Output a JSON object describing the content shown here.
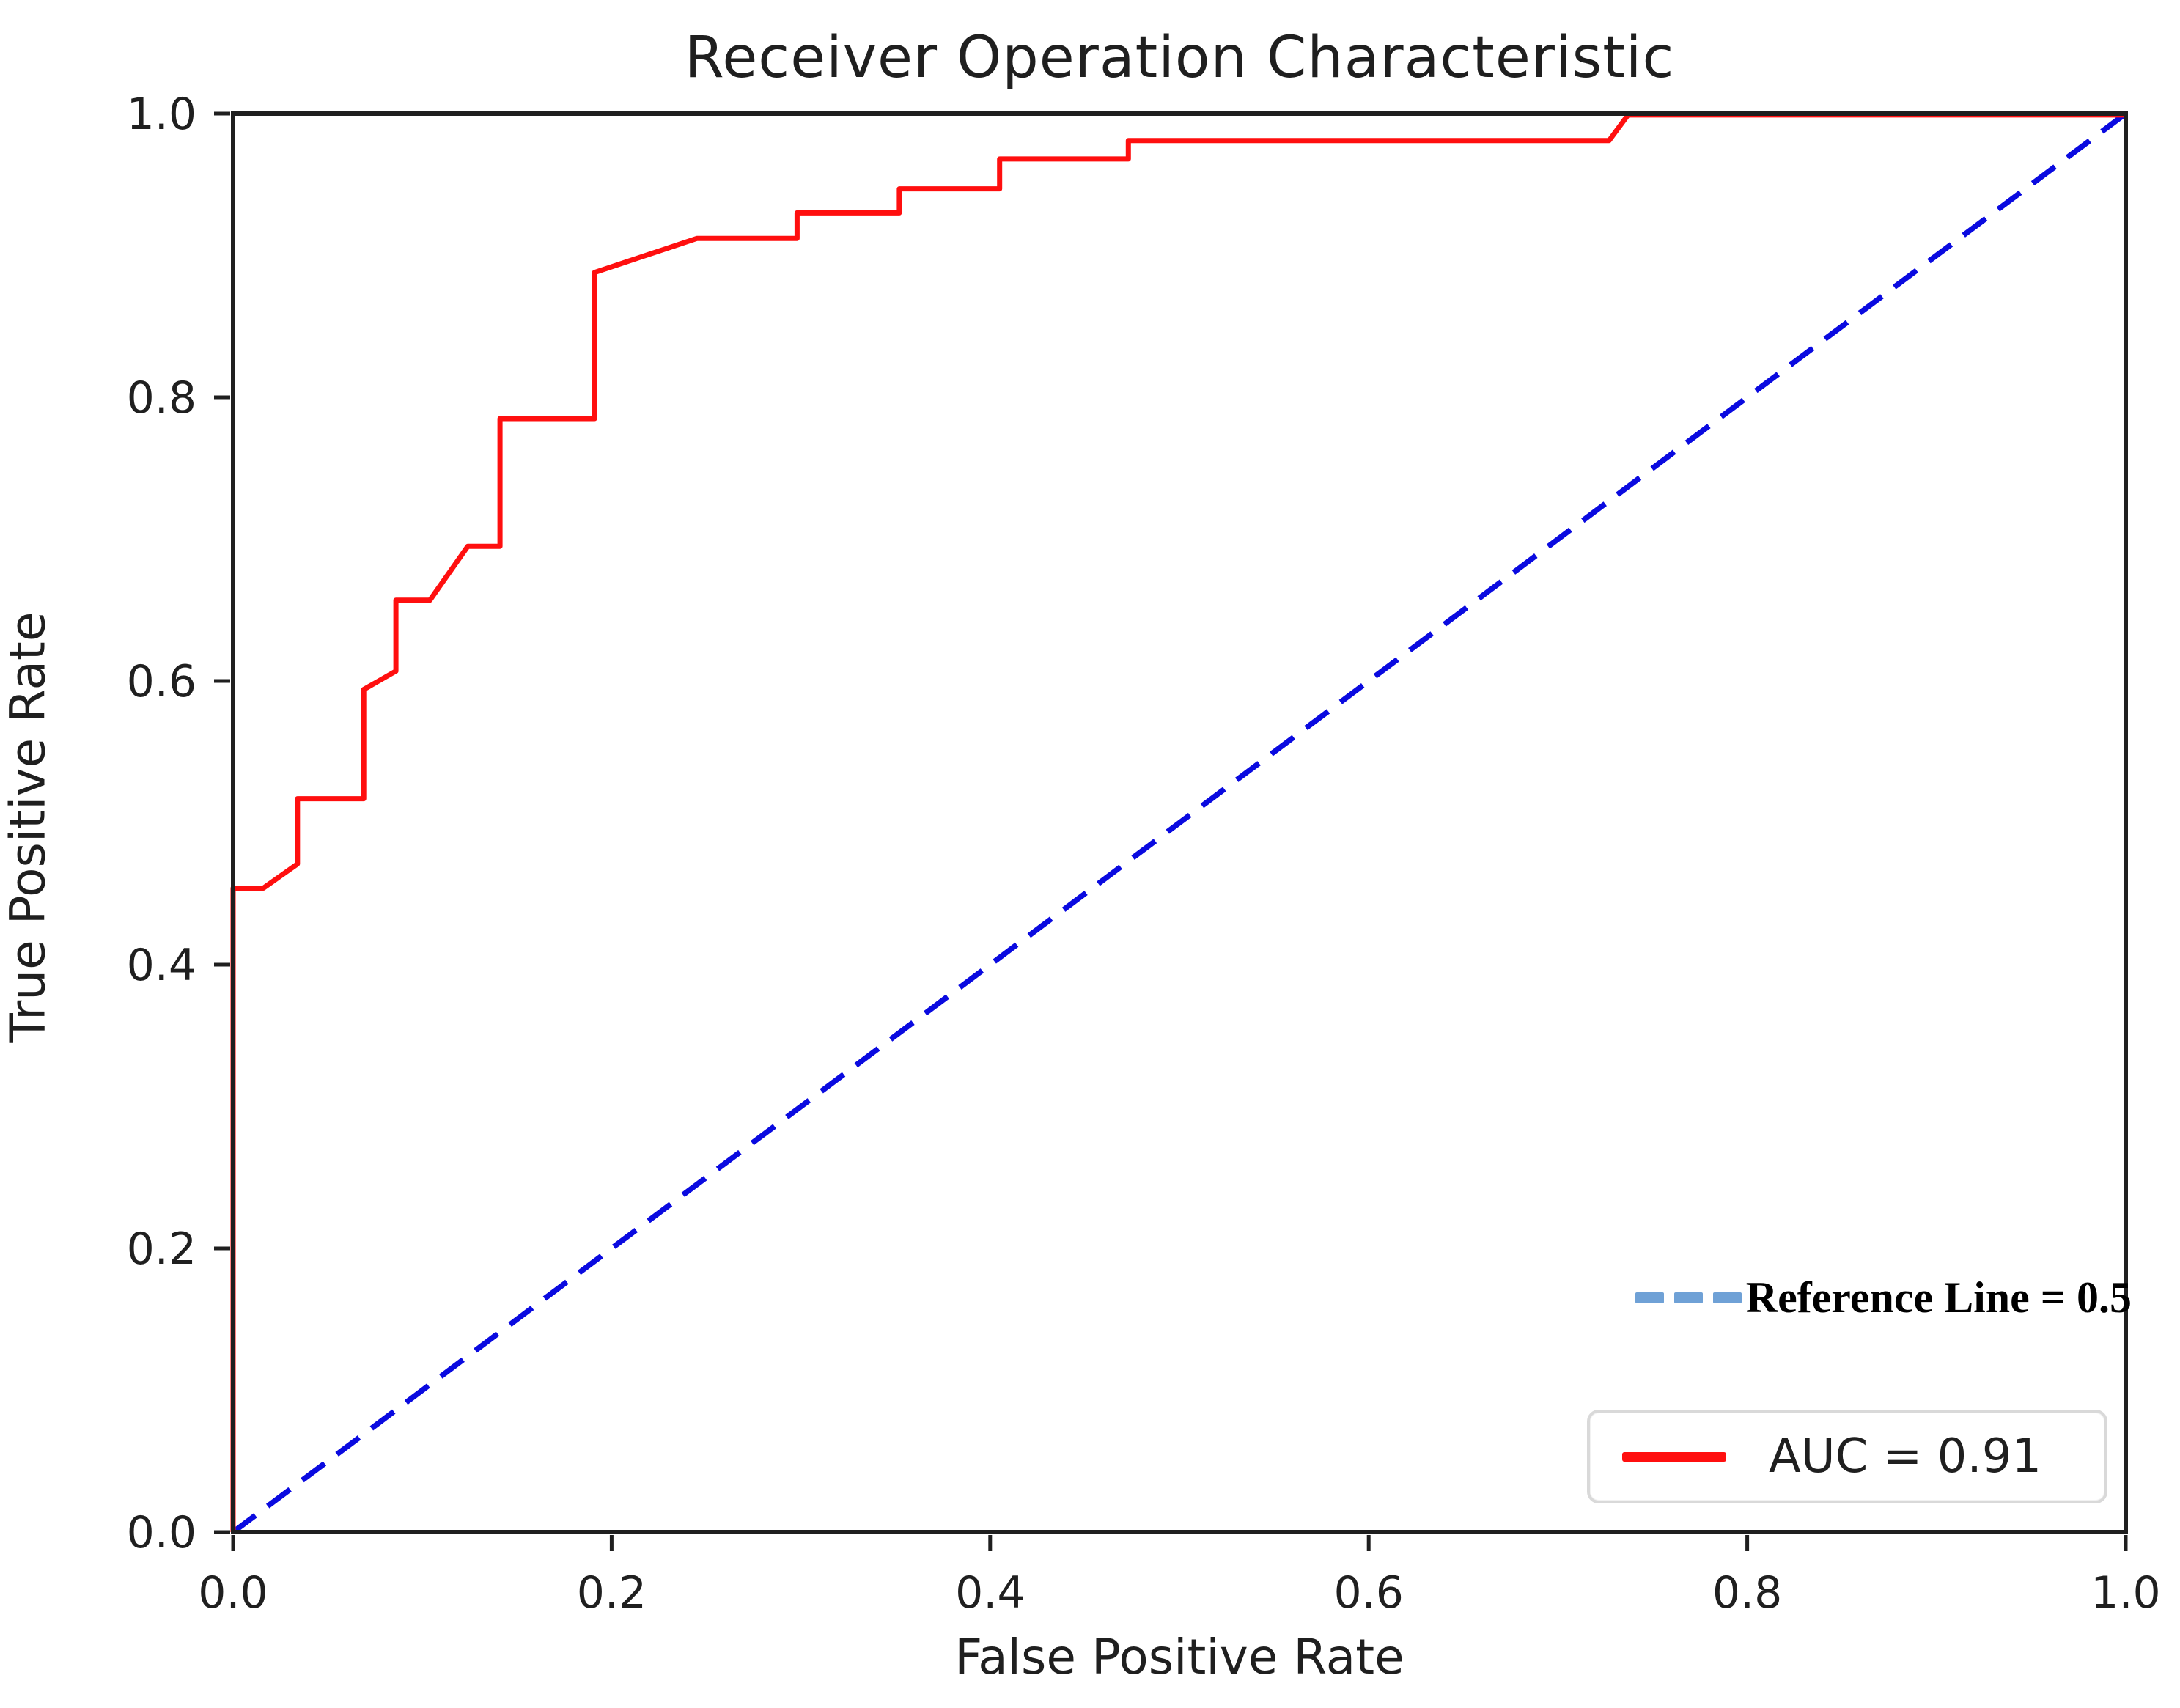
{
  "title": "Receiver Operation Characteristic",
  "axes": {
    "x": {
      "label": "False Positive Rate",
      "tick_labels": [
        "0.0",
        "0.2",
        "0.4",
        "0.6",
        "0.8",
        "1.0"
      ],
      "tick_values": [
        0.0,
        0.2,
        0.4,
        0.6,
        0.8,
        1.0
      ],
      "range": [
        0.0,
        1.0
      ]
    },
    "y": {
      "label": "True Positive Rate",
      "tick_labels": [
        "0.0",
        "0.2",
        "0.4",
        "0.6",
        "0.8",
        "1.0"
      ],
      "tick_values": [
        0.0,
        0.2,
        0.4,
        0.6,
        0.8,
        1.0
      ],
      "range": [
        0.0,
        1.0
      ]
    }
  },
  "annotation": {
    "text": "Reference Line = 0.5",
    "line_color": "#6fa1d6"
  },
  "legend": {
    "label": "AUC = 0.91",
    "line_color": "#ff0f0f"
  },
  "colors": {
    "roc_curve": "#ff0f0f",
    "reference_line": "#0a0ae0",
    "axis": "#1f1f1f",
    "background": "#ffffff"
  },
  "chart_data": {
    "type": "line",
    "title": "Receiver Operation Characteristic",
    "xlabel": "False Positive Rate",
    "ylabel": "True Positive Rate",
    "xlim": [
      0.0,
      1.0
    ],
    "ylim": [
      0.0,
      1.0
    ],
    "grid": false,
    "legend_position": "lower right",
    "series": [
      {
        "name": "AUC = 0.91",
        "color": "#ff0f0f",
        "style": "solid",
        "points": [
          [
            0.0,
            0.0
          ],
          [
            0.0,
            0.454
          ],
          [
            0.016,
            0.454
          ],
          [
            0.034,
            0.471
          ],
          [
            0.034,
            0.517
          ],
          [
            0.069,
            0.517
          ],
          [
            0.069,
            0.594
          ],
          [
            0.086,
            0.607
          ],
          [
            0.086,
            0.657
          ],
          [
            0.104,
            0.657
          ],
          [
            0.124,
            0.695
          ],
          [
            0.141,
            0.695
          ],
          [
            0.141,
            0.785
          ],
          [
            0.191,
            0.785
          ],
          [
            0.191,
            0.888
          ],
          [
            0.245,
            0.912
          ],
          [
            0.298,
            0.912
          ],
          [
            0.298,
            0.93
          ],
          [
            0.352,
            0.93
          ],
          [
            0.352,
            0.947
          ],
          [
            0.405,
            0.947
          ],
          [
            0.405,
            0.968
          ],
          [
            0.473,
            0.968
          ],
          [
            0.473,
            0.981
          ],
          [
            0.727,
            0.981
          ],
          [
            0.737,
            0.999
          ],
          [
            1.0,
            0.999
          ]
        ]
      },
      {
        "name": "Reference Line = 0.5",
        "color": "#0a0ae0",
        "style": "dashed",
        "points": [
          [
            0.0,
            0.0
          ],
          [
            1.0,
            1.0
          ]
        ]
      }
    ]
  }
}
